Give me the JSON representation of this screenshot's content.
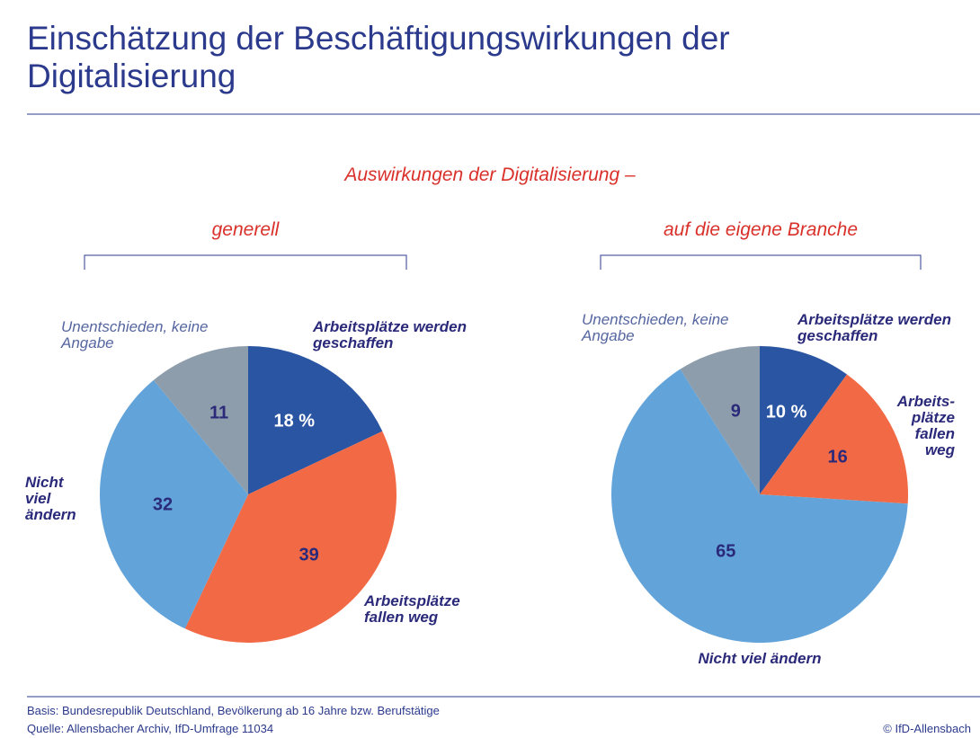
{
  "title": "Einschätzung der Beschäftigungswirkungen der Digitalisierung",
  "heading": "Auswirkungen der Digitalisierung –",
  "footer": {
    "basis": "Basis: Bundesrepublik Deutschland, Bevölkerung ab 16 Jahre bzw. Berufstätige",
    "source": "Quelle: Allensbacher Archiv, IfD-Umfrage 11034",
    "copyright": "© IfD-Allensbach"
  },
  "chart_data": [
    {
      "type": "pie",
      "title": "generell",
      "categories": [
        "Arbeitsplätze werden geschaffen",
        "Arbeitsplätze fallen weg",
        "Nicht viel ändern",
        "Unentschieden, keine Angabe"
      ],
      "values": [
        18,
        39,
        32,
        11
      ],
      "value_labels": [
        "18 %",
        "39",
        "32",
        "11"
      ],
      "colors": [
        "#2a55a2",
        "#f26a45",
        "#62a3d9",
        "#8e9dab"
      ]
    },
    {
      "type": "pie",
      "title": "auf die eigene Branche",
      "categories": [
        "Arbeitsplätze werden geschaffen",
        "Arbeits-plätze fallen weg",
        "Nicht viel ändern",
        "Unentschieden, keine Angabe"
      ],
      "values": [
        10,
        16,
        65,
        9
      ],
      "value_labels": [
        "10 %",
        "16",
        "65",
        "9"
      ],
      "colors": [
        "#2a55a2",
        "#f26a45",
        "#62a3d9",
        "#8e9dab"
      ]
    }
  ]
}
